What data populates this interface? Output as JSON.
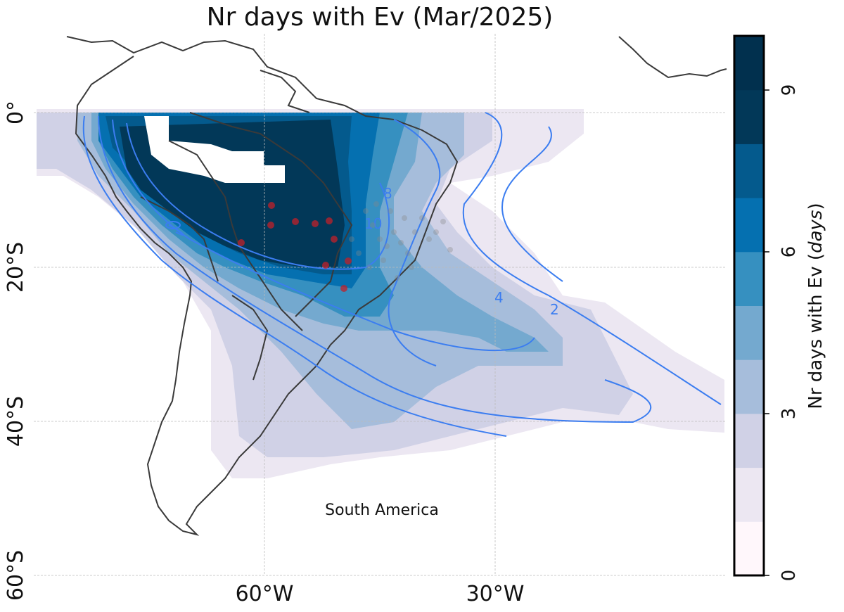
{
  "title": "Nr days with Ev (Mar/2025)",
  "region_label": "South America",
  "lat_labels": [
    "0°",
    "20°S",
    "40°S",
    "60°S"
  ],
  "lon_labels": [
    "60°W",
    "30°W"
  ],
  "colorbar": {
    "label": "Nr days with Ev (days)",
    "label_main": "Nr days with Ev (",
    "label_unit": "days",
    "label_close": ")",
    "ticks": [
      "0",
      "3",
      "6",
      "9"
    ],
    "min": 0,
    "max": 10,
    "colors": [
      "#fff7fb",
      "#ece7f2",
      "#d0d1e6",
      "#a6bddb",
      "#74a9cf",
      "#3690c0",
      "#0570b0",
      "#045a8d",
      "#023858",
      "#01304e"
    ]
  },
  "contour_labels": [
    "2",
    "4",
    "8",
    "10"
  ],
  "colors": {
    "coastline": "#3a3a3a",
    "contour": "#3b7df0",
    "station_red": "#c0202a",
    "station_gray": "#888888"
  }
}
